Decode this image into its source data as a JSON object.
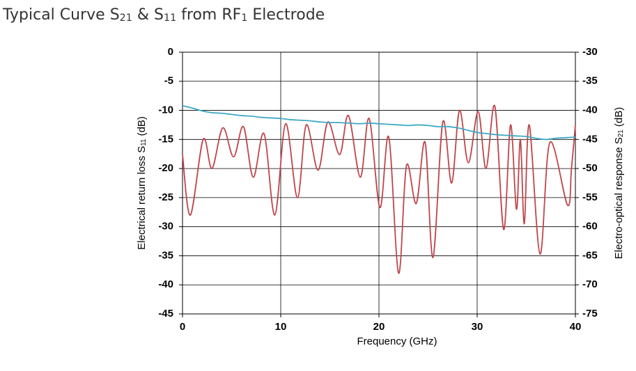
{
  "chart_data": {
    "type": "line",
    "title": "Typical Curve S21 & S11 from RF1 Electrode",
    "xlabel": "Frequency (GHz)",
    "ylabel": "Electrical return loss S11 (dB)",
    "y2label": "Electro-optical response S21 (dB)",
    "xlim": [
      0,
      40
    ],
    "xticks": [
      0,
      10,
      20,
      30,
      40
    ],
    "ylim": [
      -45,
      0
    ],
    "yticks": [
      0,
      -5,
      -10,
      -15,
      -20,
      -25,
      -30,
      -35,
      -40,
      -45
    ],
    "y2lim": [
      -75,
      -30
    ],
    "y2ticks": [
      -30,
      -35,
      -40,
      -45,
      -50,
      -55,
      -60,
      -65,
      -70,
      -75
    ],
    "grid": true,
    "series": [
      {
        "name": "S11",
        "color": "#c0454a",
        "x": [
          0,
          0.8,
          2.1,
          3.0,
          4.1,
          5.2,
          6.2,
          7.2,
          8.3,
          9.4,
          10.5,
          11.7,
          12.6,
          13.8,
          14.8,
          16.0,
          16.9,
          18.1,
          19.0,
          20.1,
          21.0,
          22.0,
          22.8,
          23.8,
          24.7,
          25.5,
          26.5,
          27.4,
          28.2,
          29.1,
          30.1,
          30.9,
          31.8,
          32.7,
          33.4,
          34.0,
          34.4,
          34.8,
          35.3,
          36.4,
          37.4,
          39.2,
          39.6,
          40
        ],
        "values": [
          -17.6,
          -28,
          -15,
          -20,
          -13,
          -18,
          -12.8,
          -21.5,
          -14,
          -28,
          -12.3,
          -25,
          -12.5,
          -20.3,
          -12,
          -17.6,
          -10.9,
          -21.5,
          -11.4,
          -26.7,
          -14.6,
          -38,
          -19.5,
          -26,
          -15.5,
          -35.3,
          -12,
          -22.5,
          -10,
          -19,
          -10.2,
          -20,
          -9.3,
          -30.5,
          -12.5,
          -27,
          -15,
          -29.5,
          -12.5,
          -34.7,
          -15.5,
          -26.3,
          -20,
          -12.5
        ]
      },
      {
        "name": "S21",
        "color": "#3ea9c4",
        "axis": "y2",
        "x": [
          0,
          1,
          2,
          3,
          4,
          5,
          6,
          7,
          8,
          9,
          10,
          11,
          12,
          13,
          14,
          15,
          16,
          17,
          18,
          19,
          20,
          21,
          22,
          23,
          24,
          25,
          26,
          27,
          28,
          29,
          30,
          31,
          32,
          33,
          34,
          35,
          36,
          37,
          38,
          39,
          40
        ],
        "values": [
          -39.2,
          -39.6,
          -40.1,
          -40.4,
          -40.5,
          -40.7,
          -40.9,
          -41.0,
          -41.2,
          -41.3,
          -41.4,
          -41.6,
          -41.7,
          -41.8,
          -42.0,
          -42.1,
          -42.1,
          -42.2,
          -42.3,
          -42.2,
          -42.3,
          -42.4,
          -42.5,
          -42.6,
          -42.5,
          -42.6,
          -42.8,
          -42.8,
          -43.0,
          -43.4,
          -43.8,
          -44.0,
          -44.2,
          -44.3,
          -44.4,
          -44.5,
          -44.8,
          -45.0,
          -44.8,
          -44.7,
          -44.6
        ]
      }
    ]
  }
}
